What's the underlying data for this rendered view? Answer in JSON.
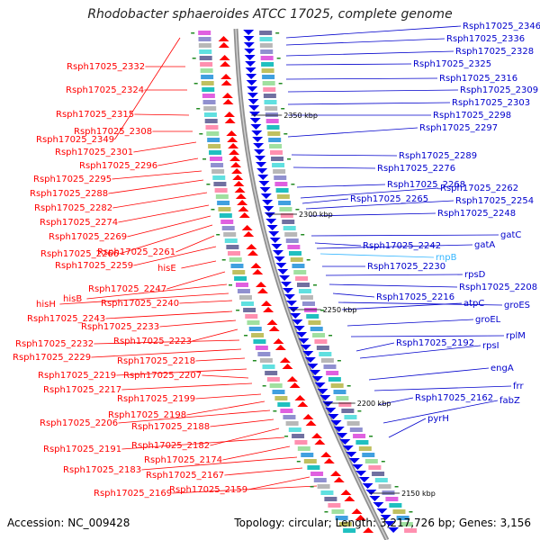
{
  "title": "Rhodobacter sphaeroides ATCC 17025, complete genome",
  "accession_text": "Accession: NC_009428",
  "summary_text": "Topology: circular; Length: 3,217,726 bp; Genes: 3,156",
  "colors": {
    "minus_strand_label": "#ff0000",
    "plus_strand_label": "#0000cc",
    "rna_label": "#33b5ff",
    "backbone": "#909090",
    "tick_marker": "#228b22"
  },
  "scale_marks": [
    {
      "label": "2350 kbp"
    },
    {
      "label": "2300 kbp"
    },
    {
      "label": "2250 kbp"
    },
    {
      "label": "2200 kbp"
    },
    {
      "label": "2150 kbp"
    }
  ],
  "left_labels": [
    {
      "text": "Rsph17025_2349"
    },
    {
      "text": "Rsph17025_2332"
    },
    {
      "text": "Rsph17025_2324"
    },
    {
      "text": "Rsph17025_2315"
    },
    {
      "text": "Rsph17025_2308"
    },
    {
      "text": "Rsph17025_2301"
    },
    {
      "text": "Rsph17025_2296"
    },
    {
      "text": "Rsph17025_2295"
    },
    {
      "text": "Rsph17025_2288"
    },
    {
      "text": "Rsph17025_2282"
    },
    {
      "text": "Rsph17025_2274"
    },
    {
      "text": "Rsph17025_2269"
    },
    {
      "text": "Rsph17025_2266"
    },
    {
      "text": "Rsph17025_2261"
    },
    {
      "text": "Rsph17025_2259"
    },
    {
      "text": "hisE"
    },
    {
      "text": "Rsph17025_2247"
    },
    {
      "text": "hisB"
    },
    {
      "text": "hisH"
    },
    {
      "text": "Rsph17025_2240"
    },
    {
      "text": "Rsph17025_2243"
    },
    {
      "text": "Rsph17025_2233"
    },
    {
      "text": "Rsph17025_2223"
    },
    {
      "text": "Rsph17025_2232"
    },
    {
      "text": "Rsph17025_2229"
    },
    {
      "text": "Rsph17025_2218"
    },
    {
      "text": "Rsph17025_2219"
    },
    {
      "text": "Rsph17025_2207"
    },
    {
      "text": "Rsph17025_2217"
    },
    {
      "text": "Rsph17025_2199"
    },
    {
      "text": "Rsph17025_2198"
    },
    {
      "text": "Rsph17025_2206"
    },
    {
      "text": "Rsph17025_2188"
    },
    {
      "text": "Rsph17025_2182"
    },
    {
      "text": "Rsph17025_2191"
    },
    {
      "text": "Rsph17025_2174"
    },
    {
      "text": "Rsph17025_2183"
    },
    {
      "text": "Rsph17025_2167"
    },
    {
      "text": "Rsph17025_2159"
    },
    {
      "text": "Rsph17025_2169"
    }
  ],
  "right_labels": [
    {
      "text": "Rsph17025_2346"
    },
    {
      "text": "Rsph17025_2336"
    },
    {
      "text": "Rsph17025_2328"
    },
    {
      "text": "Rsph17025_2325"
    },
    {
      "text": "Rsph17025_2316"
    },
    {
      "text": "Rsph17025_2309"
    },
    {
      "text": "Rsph17025_2303"
    },
    {
      "text": "Rsph17025_2298"
    },
    {
      "text": "Rsph17025_2297"
    },
    {
      "text": "Rsph17025_2289"
    },
    {
      "text": "Rsph17025_2276"
    },
    {
      "text": "Rsph17025_2268"
    },
    {
      "text": "Rsph17025_2262"
    },
    {
      "text": "Rsph17025_2265"
    },
    {
      "text": "Rsph17025_2254"
    },
    {
      "text": "Rsph17025_2248"
    },
    {
      "text": "gatC"
    },
    {
      "text": "Rsph17025_2242"
    },
    {
      "text": "gatA"
    },
    {
      "text": "rnpB"
    },
    {
      "text": "Rsph17025_2230"
    },
    {
      "text": "rpsD"
    },
    {
      "text": "Rsph17025_2208"
    },
    {
      "text": "Rsph17025_2216"
    },
    {
      "text": "groES"
    },
    {
      "text": "atpC"
    },
    {
      "text": "groEL"
    },
    {
      "text": "rplM"
    },
    {
      "text": "Rsph17025_2192"
    },
    {
      "text": "rpsI"
    },
    {
      "text": "engA"
    },
    {
      "text": "frr"
    },
    {
      "text": "Rsph17025_2162"
    },
    {
      "text": "fabZ"
    },
    {
      "text": "pyrH"
    }
  ]
}
